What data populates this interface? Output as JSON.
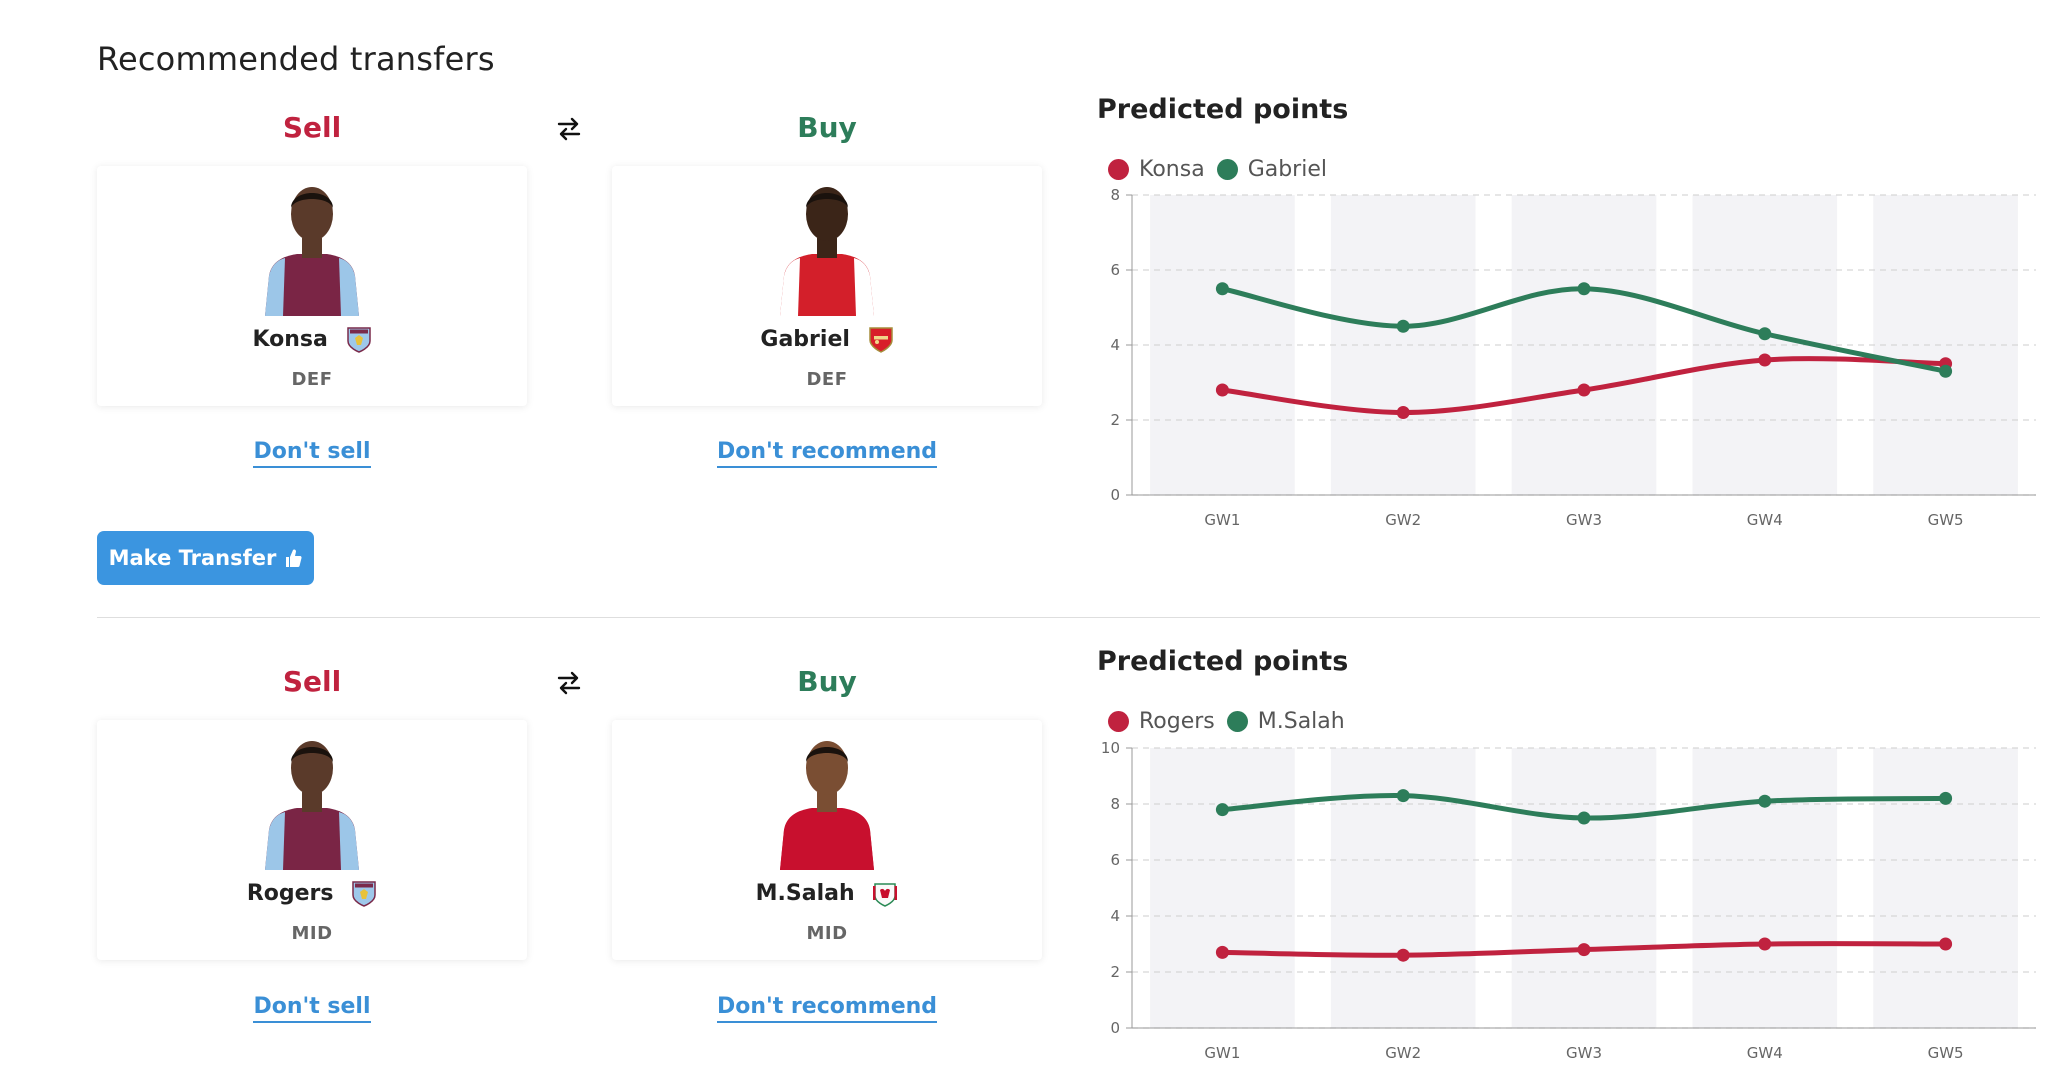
{
  "page": {
    "title": "Recommended transfers"
  },
  "colors": {
    "sell": "#c0223f",
    "buy": "#2d7d5a",
    "link": "#3a8fd6",
    "button": "#3b95e0",
    "band": "#f3f3f6"
  },
  "transfers": [
    {
      "sell_label": "Sell",
      "buy_label": "Buy",
      "sell_player": {
        "name": "Konsa",
        "position": "DEF",
        "club_icon": "aston-villa-crest-icon",
        "kit": "villa"
      },
      "buy_player": {
        "name": "Gabriel",
        "position": "DEF",
        "club_icon": "arsenal-crest-icon",
        "kit": "arsenal"
      },
      "sell_action": "Don't sell",
      "buy_action": "Don't recommend",
      "chart_title": "Predicted points",
      "chart_data": {
        "type": "line",
        "categories": [
          "GW1",
          "GW2",
          "GW3",
          "GW4",
          "GW5"
        ],
        "ylim": [
          0,
          8
        ],
        "yticks": [
          0,
          2,
          4,
          6,
          8
        ],
        "grid": true,
        "legend": "top-left",
        "series": [
          {
            "name": "Konsa",
            "color": "#c0223f",
            "values": [
              2.8,
              2.2,
              2.8,
              3.6,
              3.5
            ]
          },
          {
            "name": "Gabriel",
            "color": "#2d7d5a",
            "values": [
              5.5,
              4.5,
              5.5,
              4.3,
              3.3
            ]
          }
        ]
      }
    },
    {
      "sell_label": "Sell",
      "buy_label": "Buy",
      "sell_player": {
        "name": "Rogers",
        "position": "MID",
        "club_icon": "aston-villa-crest-icon",
        "kit": "villa"
      },
      "buy_player": {
        "name": "M.Salah",
        "position": "MID",
        "club_icon": "liverpool-crest-icon",
        "kit": "liverpool"
      },
      "sell_action": "Don't sell",
      "buy_action": "Don't recommend",
      "chart_title": "Predicted points",
      "chart_data": {
        "type": "line",
        "categories": [
          "GW1",
          "GW2",
          "GW3",
          "GW4",
          "GW5"
        ],
        "ylim": [
          0,
          10
        ],
        "yticks": [
          0,
          2,
          4,
          6,
          8,
          10
        ],
        "grid": true,
        "legend": "top-left",
        "series": [
          {
            "name": "Rogers",
            "color": "#c0223f",
            "values": [
              2.7,
              2.6,
              2.8,
              3.0,
              3.0
            ]
          },
          {
            "name": "M.Salah",
            "color": "#2d7d5a",
            "values": [
              7.8,
              8.3,
              7.5,
              8.1,
              8.2
            ]
          }
        ]
      }
    }
  ],
  "make_transfer": {
    "label": "Make Transfer",
    "icon": "thumbs-up-icon"
  }
}
